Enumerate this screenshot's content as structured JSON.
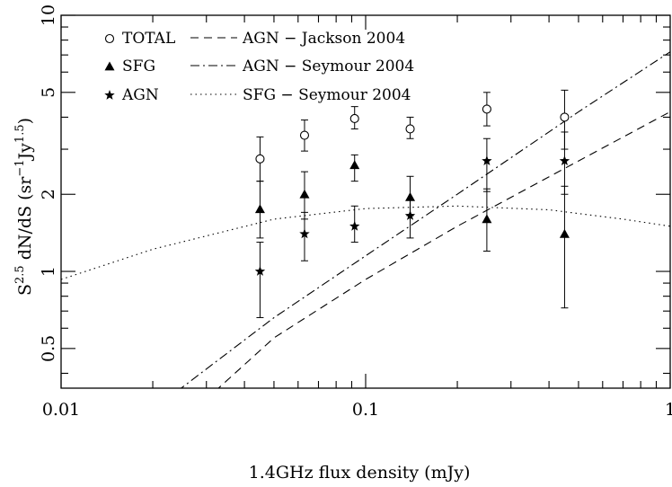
{
  "chart_data": {
    "type": "scatter",
    "xlabel": "1.4GHz flux density (mJy)",
    "ylabel_main": "S",
    "ylabel_sup": "2.5",
    "ylabel_mid": " dN/dS (sr",
    "ylabel_sup2": "−1",
    "ylabel_mid2": "Jy",
    "ylabel_sup3": "1.5",
    "ylabel_end": ")",
    "x_scale": "log",
    "y_scale": "log",
    "xlim": [
      0.01,
      1
    ],
    "ylim": [
      0.35,
      10
    ],
    "x_ticks": [
      {
        "value": 0.01,
        "label": "0.01"
      },
      {
        "value": 0.1,
        "label": "0.1"
      },
      {
        "value": 1,
        "label": "1"
      }
    ],
    "y_ticks": [
      {
        "value": 0.5,
        "label": "0.5"
      },
      {
        "value": 1,
        "label": "1"
      },
      {
        "value": 2,
        "label": "2"
      },
      {
        "value": 5,
        "label": "5"
      },
      {
        "value": 10,
        "label": "10"
      }
    ],
    "legend": {
      "placement": "top-left",
      "entries": [
        {
          "label": "TOTAL",
          "marker": "open-circle"
        },
        {
          "label": "SFG",
          "marker": "filled-triangle"
        },
        {
          "label": "AGN",
          "marker": "filled-star"
        },
        {
          "label": "AGN − Jackson 2004",
          "line": "dashed"
        },
        {
          "label": "AGN − Seymour 2004",
          "line": "dash-dot"
        },
        {
          "label": "SFG − Seymour 2004",
          "line": "dotted"
        }
      ]
    },
    "series": [
      {
        "name": "TOTAL",
        "marker": "open-circle",
        "points": [
          {
            "x": 0.045,
            "y": 2.75,
            "ylo": 2.25,
            "yhi": 3.35
          },
          {
            "x": 0.063,
            "y": 3.4,
            "ylo": 2.95,
            "yhi": 3.9
          },
          {
            "x": 0.092,
            "y": 3.95,
            "ylo": 3.6,
            "yhi": 4.4
          },
          {
            "x": 0.14,
            "y": 3.6,
            "ylo": 3.3,
            "yhi": 4.0
          },
          {
            "x": 0.25,
            "y": 4.3,
            "ylo": 3.7,
            "yhi": 5.0
          },
          {
            "x": 0.45,
            "y": 4.0,
            "ylo": 3.0,
            "yhi": 5.1
          }
        ]
      },
      {
        "name": "SFG",
        "marker": "filled-triangle",
        "points": [
          {
            "x": 0.045,
            "y": 1.75,
            "ylo": 1.35,
            "yhi": 2.25
          },
          {
            "x": 0.063,
            "y": 2.0,
            "ylo": 1.6,
            "yhi": 2.45
          },
          {
            "x": 0.092,
            "y": 2.6,
            "ylo": 2.25,
            "yhi": 2.85
          },
          {
            "x": 0.14,
            "y": 1.95,
            "ylo": 1.65,
            "yhi": 2.35
          },
          {
            "x": 0.25,
            "y": 1.6,
            "ylo": 1.2,
            "yhi": 2.1
          },
          {
            "x": 0.45,
            "y": 1.4,
            "ylo": 0.72,
            "yhi": 2.15
          }
        ]
      },
      {
        "name": "AGN",
        "marker": "filled-star",
        "points": [
          {
            "x": 0.045,
            "y": 1.0,
            "ylo": 0.66,
            "yhi": 1.3
          },
          {
            "x": 0.063,
            "y": 1.4,
            "ylo": 1.1,
            "yhi": 1.7
          },
          {
            "x": 0.092,
            "y": 1.5,
            "ylo": 1.3,
            "yhi": 1.8
          },
          {
            "x": 0.14,
            "y": 1.65,
            "ylo": 1.35,
            "yhi": 1.9
          },
          {
            "x": 0.25,
            "y": 2.7,
            "ylo": 2.05,
            "yhi": 3.3
          },
          {
            "x": 0.45,
            "y": 2.7,
            "ylo": 2.0,
            "yhi": 3.5
          }
        ]
      }
    ],
    "curves": [
      {
        "name": "AGN − Jackson 2004",
        "style": "dashed",
        "points": [
          {
            "x": 0.032,
            "y": 0.34
          },
          {
            "x": 0.05,
            "y": 0.55
          },
          {
            "x": 0.1,
            "y": 0.93
          },
          {
            "x": 0.2,
            "y": 1.5
          },
          {
            "x": 0.5,
            "y": 2.7
          },
          {
            "x": 1.0,
            "y": 4.2
          }
        ]
      },
      {
        "name": "AGN − Seymour 2004",
        "style": "dash-dot",
        "points": [
          {
            "x": 0.024,
            "y": 0.34
          },
          {
            "x": 0.05,
            "y": 0.66
          },
          {
            "x": 0.1,
            "y": 1.15
          },
          {
            "x": 0.2,
            "y": 2.0
          },
          {
            "x": 0.5,
            "y": 4.2
          },
          {
            "x": 1.0,
            "y": 7.2
          }
        ]
      },
      {
        "name": "SFG − Seymour 2004",
        "style": "dotted",
        "points": [
          {
            "x": 0.01,
            "y": 0.93
          },
          {
            "x": 0.02,
            "y": 1.22
          },
          {
            "x": 0.05,
            "y": 1.6
          },
          {
            "x": 0.1,
            "y": 1.76
          },
          {
            "x": 0.2,
            "y": 1.8
          },
          {
            "x": 0.4,
            "y": 1.74
          },
          {
            "x": 0.7,
            "y": 1.6
          },
          {
            "x": 1.0,
            "y": 1.5
          }
        ]
      }
    ]
  }
}
